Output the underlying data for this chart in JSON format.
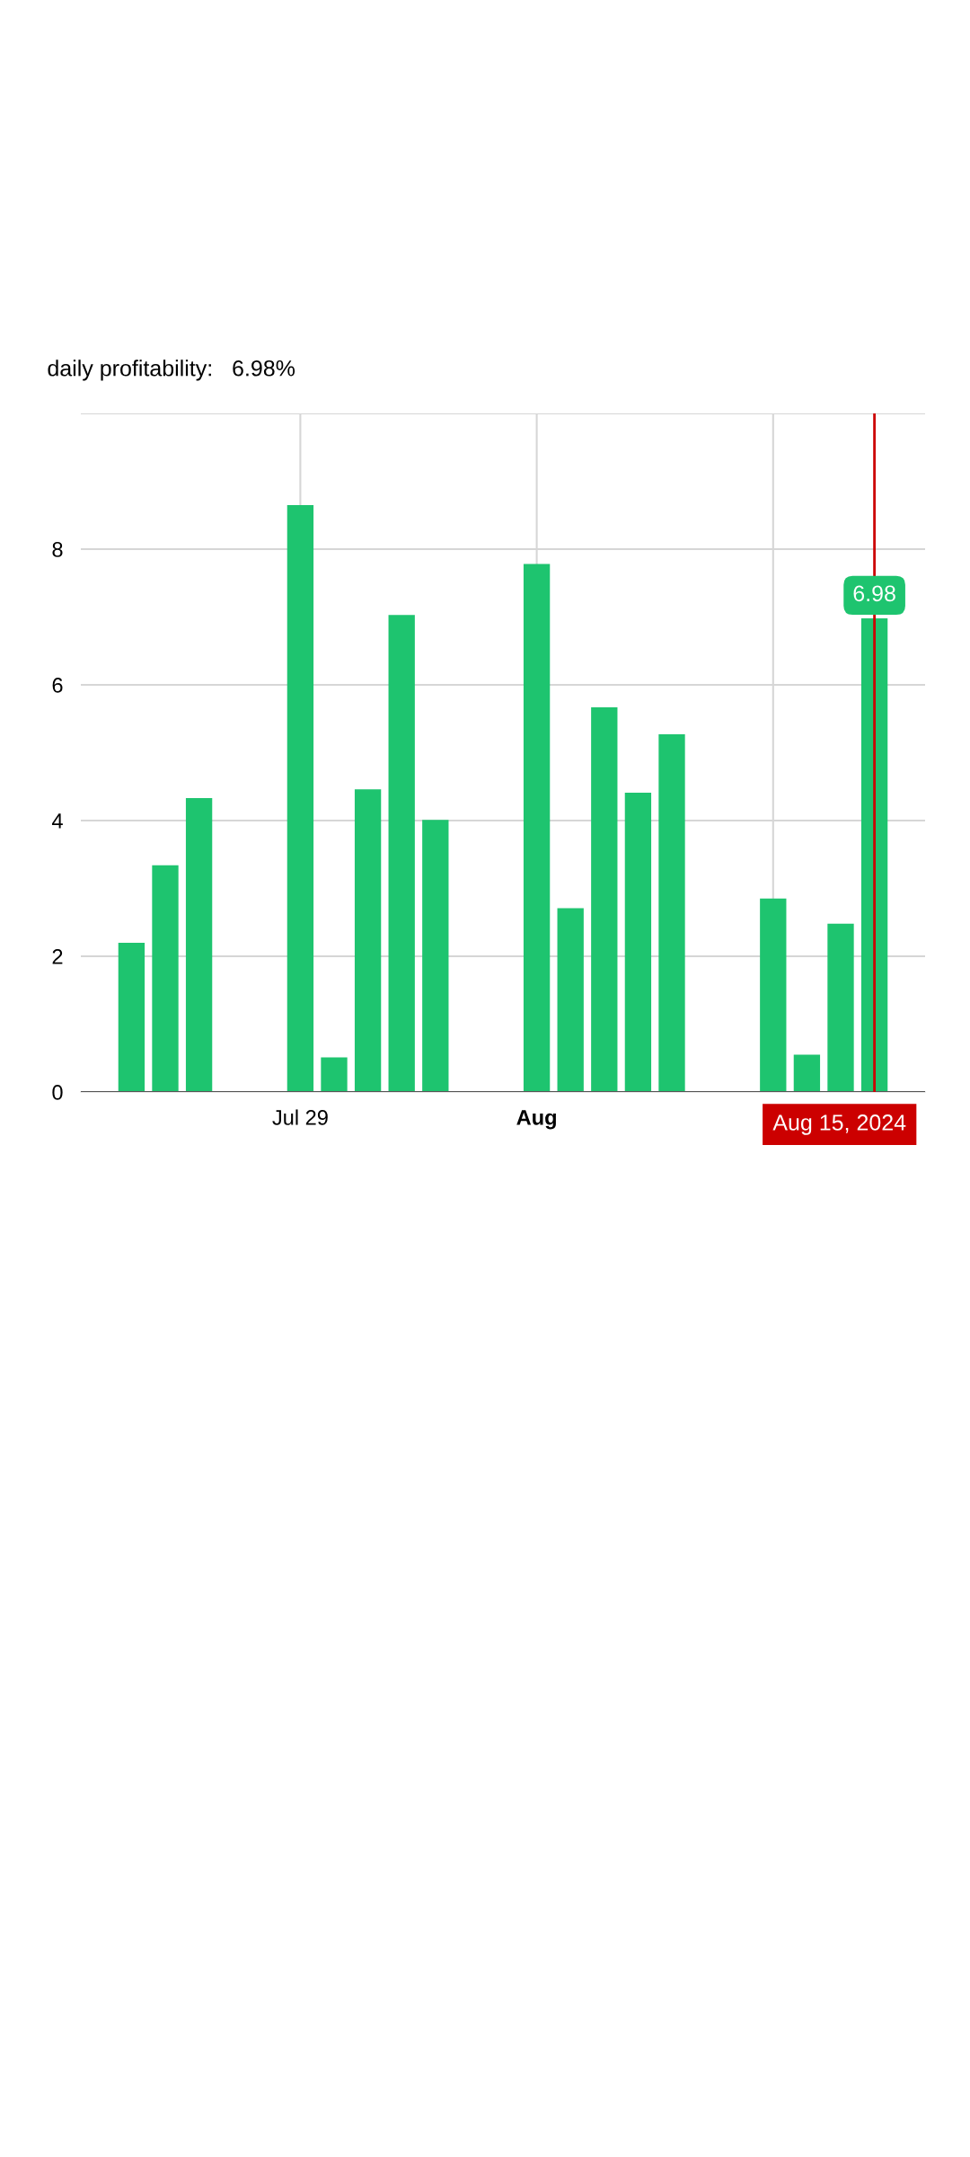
{
  "chart_data": {
    "type": "bar",
    "title": "daily profitability:   6.98%",
    "x": [
      "2024-07-24",
      "2024-07-25",
      "2024-07-26",
      "2024-07-27",
      "2024-07-28",
      "2024-07-29",
      "2024-07-30",
      "2024-07-31",
      "2024-08-01",
      "2024-08-02",
      "2024-08-03",
      "2024-08-04",
      "2024-08-05",
      "2024-08-06",
      "2024-08-07",
      "2024-08-08",
      "2024-08-09",
      "2024-08-10",
      "2024-08-11",
      "2024-08-12",
      "2024-08-13",
      "2024-08-14",
      "2024-08-15"
    ],
    "values": [
      2.2,
      3.34,
      4.33,
      0,
      0,
      8.65,
      0.51,
      4.46,
      7.03,
      4.01,
      0,
      0,
      7.78,
      2.71,
      5.67,
      4.41,
      5.27,
      0,
      0,
      2.85,
      0.55,
      2.48,
      6.98
    ],
    "value_labels": [
      null,
      null,
      null,
      null,
      null,
      null,
      null,
      null,
      null,
      null,
      null,
      null,
      null,
      null,
      null,
      null,
      null,
      null,
      null,
      null,
      null,
      null,
      "6.98"
    ],
    "color": "#1ec46f",
    "xlim": [
      "2024-07-22T12:00",
      "2024-08-16T12:00"
    ],
    "xticks": [
      {
        "value": "2024-07-29",
        "label": "Jul 29"
      },
      {
        "value": "2024-08-05",
        "label": "Aug"
      },
      {
        "value": "2024-08-12",
        "label": null
      }
    ],
    "ylim": [
      0,
      10
    ],
    "yticks": [
      0,
      2,
      4,
      6,
      8,
      {
        "value": 10,
        "label": null
      }
    ],
    "grid": true,
    "ref_lines": [
      {
        "axis": "x",
        "value": "2024-08-15",
        "label": "Aug 15, 2024",
        "color": "#cc0000"
      }
    ]
  }
}
